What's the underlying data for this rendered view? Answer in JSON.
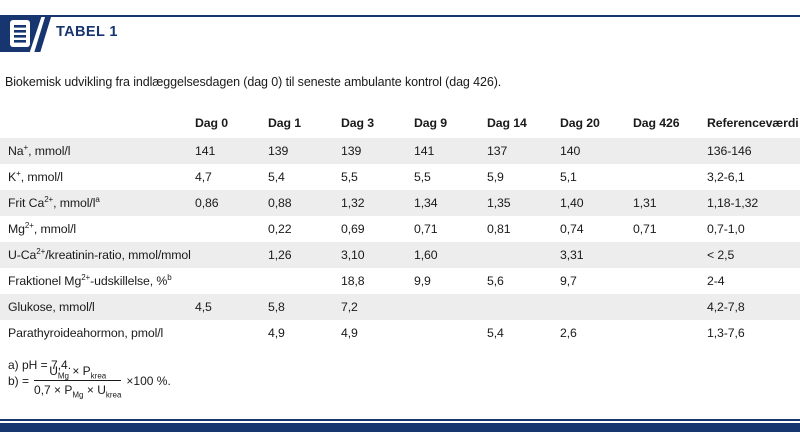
{
  "colors": {
    "navy": "#17356e",
    "row_alt": "#ededed",
    "text": "#1a1a1a"
  },
  "header": {
    "title": "TABEL 1",
    "icon": "table-list-icon"
  },
  "caption": "Biokemisk udvikling fra indlæggelsesdagen (dag 0) til seneste ambulante kontrol (dag 426).",
  "table": {
    "columns": [
      "",
      "Dag 0",
      "Dag 1",
      "Dag 3",
      "Dag 9",
      "Dag 14",
      "Dag 20",
      "Dag 426",
      "Referenceværdi"
    ],
    "rows": [
      {
        "label": [
          {
            "text": "Na"
          },
          {
            "sup": "+"
          },
          {
            "text": ", mmol/l"
          }
        ],
        "values": [
          "141",
          "139",
          "139",
          "141",
          "137",
          "140",
          "",
          "136-146"
        ]
      },
      {
        "label": [
          {
            "text": "K"
          },
          {
            "sup": "+"
          },
          {
            "text": ", mmol/l"
          }
        ],
        "values": [
          "4,7",
          "5,4",
          "5,5",
          "5,5",
          "5,9",
          "5,1",
          "",
          "3,2-6,1"
        ]
      },
      {
        "label": [
          {
            "text": "Frit Ca"
          },
          {
            "sup": "2+"
          },
          {
            "text": ", mmol/l"
          },
          {
            "sup": "a"
          }
        ],
        "values": [
          "0,86",
          "0,88",
          "1,32",
          "1,34",
          "1,35",
          "1,40",
          "1,31",
          "1,18-1,32"
        ]
      },
      {
        "label": [
          {
            "text": "Mg"
          },
          {
            "sup": "2+"
          },
          {
            "text": ", mmol/l"
          }
        ],
        "values": [
          "",
          "0,22",
          "0,69",
          "0,71",
          "0,81",
          "0,74",
          "0,71",
          "0,7-1,0"
        ]
      },
      {
        "label": [
          {
            "text": "U-Ca"
          },
          {
            "sup": "2+"
          },
          {
            "text": "/kreatinin-ratio, mmol/mmol"
          }
        ],
        "values": [
          "",
          "1,26",
          "3,10",
          "1,60",
          "",
          "3,31",
          "",
          "< 2,5"
        ]
      },
      {
        "label": [
          {
            "text": "Fraktionel Mg"
          },
          {
            "sup": "2+"
          },
          {
            "text": "-udskillelse, %"
          },
          {
            "sup": "b"
          }
        ],
        "values": [
          "",
          "",
          "18,8",
          "9,9",
          "5,6",
          "9,7",
          "",
          "2-4"
        ]
      },
      {
        "label": [
          {
            "text": "Glukose, mmol/l"
          }
        ],
        "values": [
          "4,5",
          "5,8",
          "7,2",
          "",
          "",
          "",
          "",
          "4,2-7,8"
        ]
      },
      {
        "label": [
          {
            "text": "Parathyroideahormon, pmol/l"
          }
        ],
        "values": [
          "",
          "4,9",
          "4,9",
          "",
          "5,4",
          "2,6",
          "",
          "1,3-7,6"
        ]
      }
    ]
  },
  "footnotes": {
    "a": "a) pH = 7,4.",
    "b_prefix": "b) =",
    "b_numerator": [
      {
        "text": "U"
      },
      {
        "sub": "Mg"
      },
      {
        "text": " × P"
      },
      {
        "sub": "krea"
      }
    ],
    "b_denominator": [
      {
        "text": "0,7 × P"
      },
      {
        "sub": "Mg"
      },
      {
        "text": " × U"
      },
      {
        "sub": "krea"
      }
    ],
    "b_suffix": "×100 %."
  }
}
